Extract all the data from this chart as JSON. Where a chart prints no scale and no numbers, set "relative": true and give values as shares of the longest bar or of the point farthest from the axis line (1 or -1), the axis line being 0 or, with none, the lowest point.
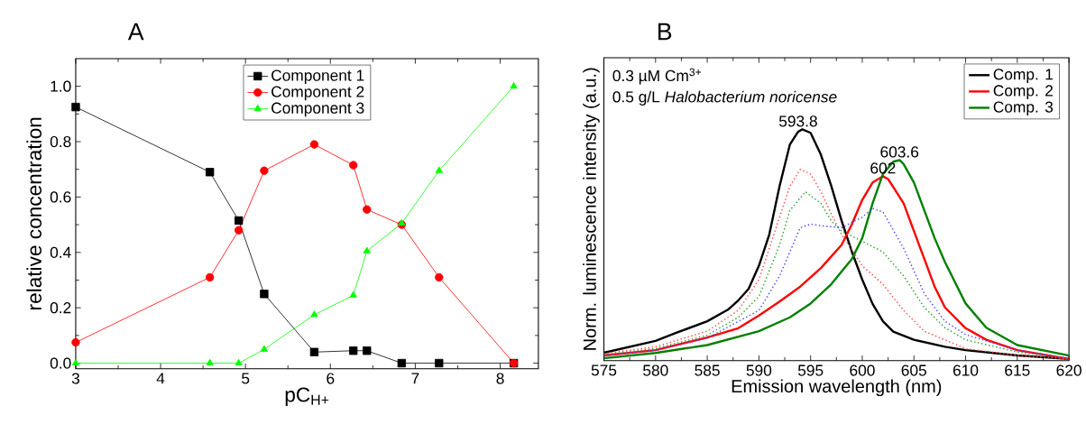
{
  "chart_data": [
    {
      "type": "line",
      "title": "A",
      "xlabel": "pC$_{H+}$",
      "ylabel": "relative concentration",
      "xlim": [
        3,
        8.45
      ],
      "ylim": [
        -0.02,
        1.1
      ],
      "xticks": [
        3,
        4,
        5,
        6,
        7,
        8
      ],
      "yticks": [
        {
          "value": 0,
          "label": "0.0"
        },
        {
          "value": 0.2,
          "label": "0.2"
        },
        {
          "value": 0.4,
          "label": "0.4"
        },
        {
          "value": 0.6,
          "label": "0.6"
        },
        {
          "value": 0.8,
          "label": "0.8"
        },
        {
          "value": 1,
          "label": "1.0"
        }
      ],
      "legend": "top",
      "line_style": "solid",
      "x": [
        3,
        4.58,
        4.92,
        5.22,
        5.81,
        6.27,
        6.43,
        6.84,
        7.28,
        8.16
      ],
      "series": [
        {
          "name": "Component 1",
          "color": "#000000",
          "marker": "square",
          "values": [
            0.925,
            0.69,
            0.515,
            0.25,
            0.04,
            0.045,
            0.045,
            0,
            0,
            0
          ]
        },
        {
          "name": "Component 2",
          "color": "#ff0000",
          "marker": "circle",
          "values": [
            0.075,
            0.31,
            0.48,
            0.695,
            0.79,
            0.715,
            0.555,
            0.5,
            0.31,
            0
          ]
        },
        {
          "name": "Component 3",
          "color": "#00ff00",
          "marker": "triangle",
          "values": [
            0,
            0,
            0,
            0.05,
            0.175,
            0.245,
            0.405,
            0.505,
            0.695,
            1.0
          ]
        }
      ]
    },
    {
      "type": "line",
      "title": "B",
      "xlabel": "Emission wavelength (nm)",
      "ylabel": "Norm. luminescence intensity (a.u.)",
      "relative": true,
      "xlim": [
        575,
        620
      ],
      "xticks": [
        575,
        580,
        585,
        590,
        595,
        600,
        605,
        610,
        615,
        620
      ],
      "legend": "top right",
      "annotations": [
        "0.3 µM Cm$^{3+}$",
        "0.5 g/L *Halobacterium noricense*",
        {
          "text": "593.8",
          "x": 593.8,
          "y": 1.0
        },
        {
          "text": "602",
          "x": 602,
          "y": 0.797
        },
        {
          "text": "603.6",
          "x": 603.6,
          "y": 0.867
        }
      ],
      "series": [
        {
          "name": "Comp. 1",
          "color": "#000000",
          "line_style": "solid",
          "x": [
            575,
            580,
            582,
            585,
            587,
            588,
            589,
            590,
            591,
            592,
            593,
            593.8,
            594.2,
            595,
            596,
            597,
            598,
            599,
            600,
            601,
            602,
            603,
            605,
            608,
            610,
            615,
            620
          ],
          "values": [
            0.034,
            0.085,
            0.12,
            0.17,
            0.22,
            0.26,
            0.31,
            0.41,
            0.545,
            0.755,
            0.935,
            0.99,
            1.0,
            0.985,
            0.89,
            0.755,
            0.605,
            0.47,
            0.35,
            0.245,
            0.17,
            0.125,
            0.09,
            0.06,
            0.045,
            0.022,
            0.007
          ]
        },
        {
          "name": "Comp. 2",
          "color": "#ff0000",
          "line_style": "solid",
          "x": [
            575,
            580,
            585,
            588,
            590,
            592,
            594,
            596,
            598,
            599,
            600,
            601,
            602,
            602.5,
            603,
            604,
            605,
            606,
            607,
            608,
            610,
            612,
            615,
            620
          ],
          "values": [
            0.022,
            0.045,
            0.1,
            0.14,
            0.195,
            0.255,
            0.32,
            0.4,
            0.5,
            0.59,
            0.695,
            0.77,
            0.797,
            0.785,
            0.75,
            0.68,
            0.56,
            0.44,
            0.32,
            0.23,
            0.14,
            0.09,
            0.045,
            0.007
          ]
        },
        {
          "name": "Comp. 3",
          "color": "#008000",
          "line_style": "solid",
          "x": [
            575,
            580,
            585,
            590,
            593,
            595,
            597,
            599,
            600,
            601,
            602,
            603,
            603.6,
            604,
            605,
            606,
            607,
            608,
            610,
            612,
            615,
            620
          ],
          "values": [
            0.01,
            0.033,
            0.067,
            0.127,
            0.187,
            0.247,
            0.33,
            0.44,
            0.53,
            0.68,
            0.807,
            0.86,
            0.867,
            0.85,
            0.77,
            0.65,
            0.53,
            0.426,
            0.247,
            0.142,
            0.067,
            0.022
          ]
        },
        {
          "color": "#ff4d4d",
          "line_style": "dotted",
          "x": [
            575,
            580,
            585,
            588,
            590,
            592,
            593,
            594,
            595,
            596,
            597,
            598,
            599,
            600,
            602,
            604,
            606,
            610,
            615,
            620
          ],
          "values": [
            0.03,
            0.06,
            0.127,
            0.217,
            0.35,
            0.62,
            0.755,
            0.827,
            0.807,
            0.73,
            0.635,
            0.545,
            0.48,
            0.41,
            0.33,
            0.217,
            0.127,
            0.052,
            0.022,
            0.007
          ]
        },
        {
          "color": "#33a033",
          "line_style": "dotted",
          "x": [
            575,
            580,
            585,
            588,
            590,
            592,
            593,
            594.5,
            596,
            597,
            598,
            600,
            602,
            604,
            606,
            608,
            610,
            615,
            620
          ],
          "values": [
            0.025,
            0.052,
            0.11,
            0.187,
            0.277,
            0.5,
            0.65,
            0.73,
            0.68,
            0.605,
            0.56,
            0.516,
            0.47,
            0.366,
            0.23,
            0.142,
            0.09,
            0.037,
            0.01
          ]
        },
        {
          "color": "#4d4dff",
          "line_style": "dotted",
          "x": [
            575,
            580,
            585,
            590,
            592,
            594,
            595,
            596,
            598,
            600,
            601,
            602,
            604,
            606,
            608,
            610,
            615,
            620
          ],
          "values": [
            0.022,
            0.045,
            0.097,
            0.217,
            0.366,
            0.575,
            0.59,
            0.583,
            0.575,
            0.62,
            0.658,
            0.643,
            0.486,
            0.29,
            0.17,
            0.112,
            0.045,
            0.01
          ]
        }
      ]
    }
  ]
}
